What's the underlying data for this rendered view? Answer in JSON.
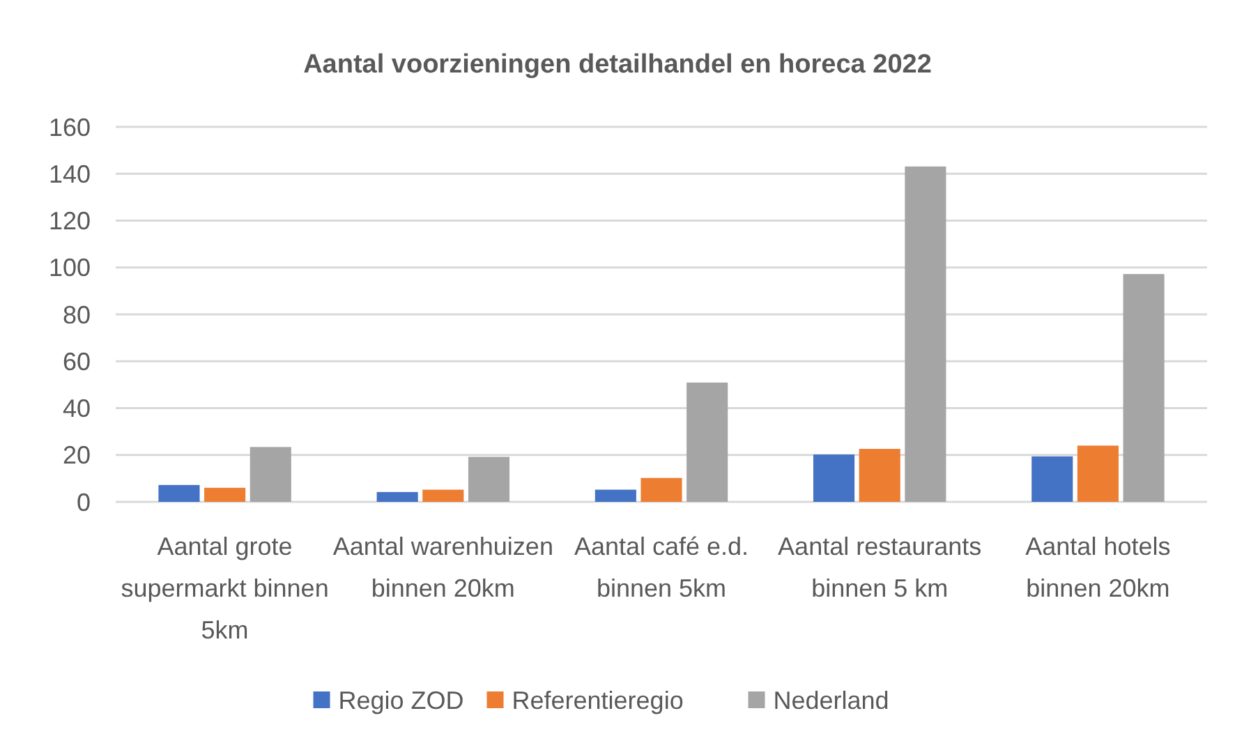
{
  "chart_data": {
    "type": "bar",
    "title": "Aantal voorzieningen detailhandel en horeca 2022",
    "categories": [
      "Aantal grote supermarkt binnen 5km",
      "Aantal warenhuizen binnen 20km",
      "Aantal café e.d. binnen 5km",
      "Aantal restaurants binnen 5 km",
      "Aantal hotels binnen 20km"
    ],
    "series": [
      {
        "name": "Regio ZOD",
        "color": "#4472c4",
        "values": [
          7.2,
          4.2,
          5.2,
          20.2,
          19.4
        ]
      },
      {
        "name": "Referentieregio",
        "color": "#ed7d31",
        "values": [
          6,
          5.2,
          10.2,
          22.6,
          24
        ]
      },
      {
        "name": "Nederland",
        "color": "#a5a5a5",
        "values": [
          23.4,
          19.2,
          50.9,
          143.1,
          97.2
        ]
      }
    ],
    "ylim": [
      0,
      160
    ],
    "yticks": [
      0,
      20,
      40,
      60,
      80,
      100,
      120,
      140,
      160
    ],
    "grid": "y",
    "legend": "bottom"
  }
}
